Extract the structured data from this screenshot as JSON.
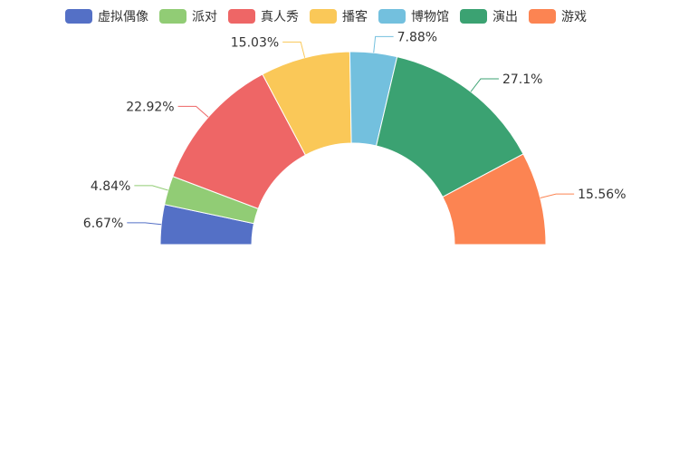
{
  "chart_data": {
    "type": "pie",
    "subtype": "half-donut",
    "legend_position": "top",
    "categories": [
      "虚拟偶像",
      "派对",
      "真人秀",
      "播客",
      "博物馆",
      "演出",
      "游戏"
    ],
    "values": [
      6.67,
      4.84,
      22.92,
      15.03,
      7.88,
      27.1,
      15.56
    ],
    "labels": [
      "6.67%",
      "4.84%",
      "22.92%",
      "15.03%",
      "7.88%",
      "27.1%",
      "15.56%"
    ],
    "colors": [
      "#5470c6",
      "#91cc75",
      "#ee6666",
      "#fac858",
      "#73c0de",
      "#3ba272",
      "#fc8452"
    ]
  }
}
